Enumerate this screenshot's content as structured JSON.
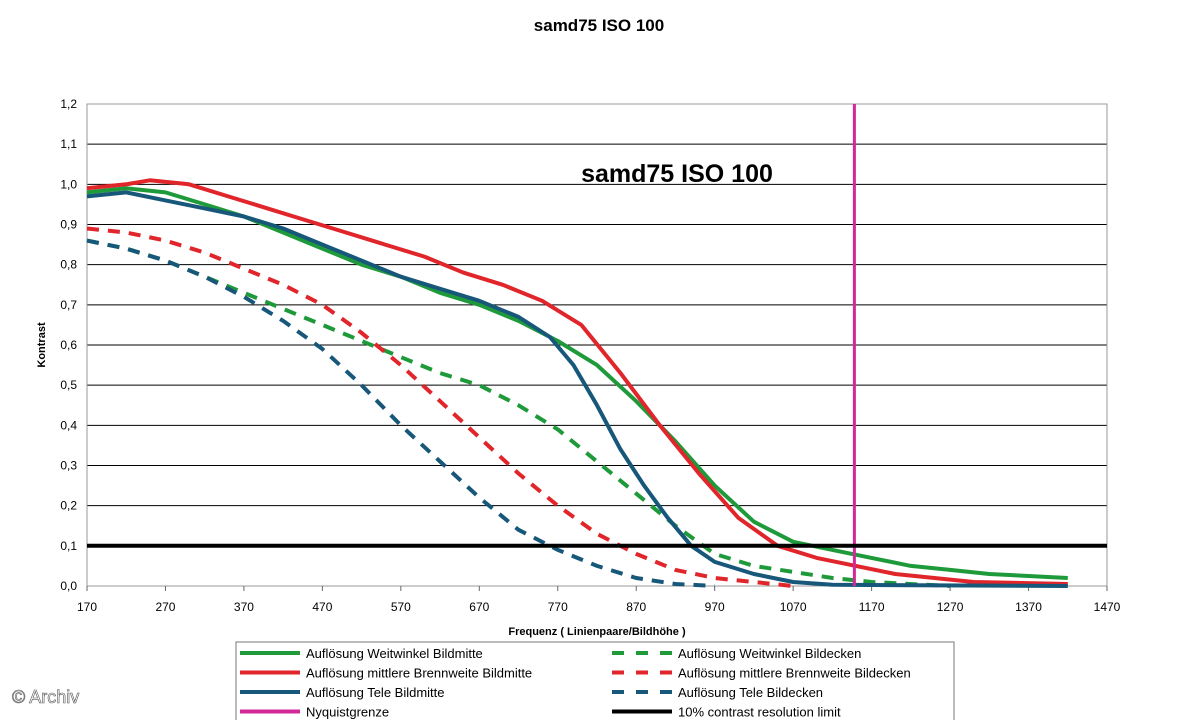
{
  "chart_data": {
    "type": "line",
    "title": "samd75 ISO 100",
    "inner_title": "samd75 ISO 100",
    "xlabel": "Frequenz ( Linienpaare/Bildhöhe )",
    "ylabel": "Kontrast",
    "xlim": [
      170,
      1470
    ],
    "ylim": [
      0,
      1.2
    ],
    "x_ticks": [
      "170",
      "270",
      "370",
      "470",
      "570",
      "670",
      "770",
      "870",
      "970",
      "1070",
      "1170",
      "1270",
      "1370",
      "1470"
    ],
    "y_ticks": [
      "0,0",
      "0,1",
      "0,2",
      "0,3",
      "0,4",
      "0,5",
      "0,6",
      "0,7",
      "0,8",
      "0,9",
      "1,0",
      "1,1",
      "1,2"
    ],
    "grid": "horizontal",
    "legend_position": "bottom",
    "series": [
      {
        "name": "Auflösung Weitwinkel Bildmitte",
        "color": "#1f9a3a",
        "dash": "solid",
        "points": [
          [
            170,
            0.98
          ],
          [
            220,
            0.99
          ],
          [
            270,
            0.98
          ],
          [
            320,
            0.95
          ],
          [
            370,
            0.92
          ],
          [
            420,
            0.88
          ],
          [
            470,
            0.84
          ],
          [
            520,
            0.8
          ],
          [
            570,
            0.77
          ],
          [
            620,
            0.73
          ],
          [
            670,
            0.7
          ],
          [
            720,
            0.66
          ],
          [
            770,
            0.61
          ],
          [
            820,
            0.55
          ],
          [
            870,
            0.46
          ],
          [
            920,
            0.36
          ],
          [
            970,
            0.25
          ],
          [
            1020,
            0.16
          ],
          [
            1070,
            0.11
          ],
          [
            1120,
            0.09
          ],
          [
            1170,
            0.07
          ],
          [
            1220,
            0.05
          ],
          [
            1270,
            0.04
          ],
          [
            1320,
            0.03
          ],
          [
            1370,
            0.025
          ],
          [
            1420,
            0.02
          ]
        ]
      },
      {
        "name": "Auflösung mittlere Brennweite Bildmitte",
        "color": "#e0252b",
        "dash": "solid",
        "points": [
          [
            170,
            0.99
          ],
          [
            220,
            1.0
          ],
          [
            250,
            1.01
          ],
          [
            300,
            1.0
          ],
          [
            350,
            0.97
          ],
          [
            400,
            0.94
          ],
          [
            450,
            0.91
          ],
          [
            500,
            0.88
          ],
          [
            550,
            0.85
          ],
          [
            600,
            0.82
          ],
          [
            650,
            0.78
          ],
          [
            700,
            0.75
          ],
          [
            750,
            0.71
          ],
          [
            800,
            0.65
          ],
          [
            850,
            0.53
          ],
          [
            900,
            0.4
          ],
          [
            950,
            0.28
          ],
          [
            1000,
            0.17
          ],
          [
            1050,
            0.1
          ],
          [
            1100,
            0.07
          ],
          [
            1150,
            0.05
          ],
          [
            1200,
            0.03
          ],
          [
            1250,
            0.02
          ],
          [
            1300,
            0.01
          ],
          [
            1420,
            0.005
          ]
        ]
      },
      {
        "name": "Auflösung Tele Bildmitte",
        "color": "#17577a",
        "dash": "solid",
        "points": [
          [
            170,
            0.97
          ],
          [
            220,
            0.98
          ],
          [
            270,
            0.96
          ],
          [
            320,
            0.94
          ],
          [
            370,
            0.92
          ],
          [
            420,
            0.89
          ],
          [
            470,
            0.85
          ],
          [
            520,
            0.81
          ],
          [
            570,
            0.77
          ],
          [
            620,
            0.74
          ],
          [
            670,
            0.71
          ],
          [
            720,
            0.67
          ],
          [
            760,
            0.62
          ],
          [
            790,
            0.55
          ],
          [
            820,
            0.45
          ],
          [
            850,
            0.34
          ],
          [
            880,
            0.25
          ],
          [
            910,
            0.17
          ],
          [
            940,
            0.1
          ],
          [
            970,
            0.06
          ],
          [
            1020,
            0.03
          ],
          [
            1070,
            0.01
          ],
          [
            1120,
            0.003
          ],
          [
            1420,
            0.0
          ]
        ]
      },
      {
        "name": "Nyquistgrenze",
        "color": "#d3289a",
        "dash": "solid",
        "points": [
          [
            1148,
            0
          ],
          [
            1148,
            1.2
          ]
        ]
      },
      {
        "name": "Auflösung Weitwinkel Bildecken",
        "color": "#1f9a3a",
        "dash": "dashed",
        "points": [
          [
            170,
            0.86
          ],
          [
            220,
            0.84
          ],
          [
            270,
            0.81
          ],
          [
            320,
            0.77
          ],
          [
            370,
            0.73
          ],
          [
            420,
            0.69
          ],
          [
            470,
            0.65
          ],
          [
            520,
            0.61
          ],
          [
            570,
            0.57
          ],
          [
            620,
            0.53
          ],
          [
            670,
            0.5
          ],
          [
            720,
            0.45
          ],
          [
            770,
            0.39
          ],
          [
            820,
            0.31
          ],
          [
            870,
            0.23
          ],
          [
            920,
            0.15
          ],
          [
            970,
            0.08
          ],
          [
            1020,
            0.05
          ],
          [
            1070,
            0.035
          ],
          [
            1120,
            0.02
          ],
          [
            1170,
            0.01
          ],
          [
            1270,
            0.0
          ]
        ]
      },
      {
        "name": "Auflösung mittlere Brennweite Bildecken",
        "color": "#e0252b",
        "dash": "dashed",
        "points": [
          [
            170,
            0.89
          ],
          [
            220,
            0.88
          ],
          [
            270,
            0.86
          ],
          [
            320,
            0.83
          ],
          [
            370,
            0.79
          ],
          [
            420,
            0.75
          ],
          [
            470,
            0.7
          ],
          [
            520,
            0.63
          ],
          [
            570,
            0.55
          ],
          [
            620,
            0.46
          ],
          [
            670,
            0.37
          ],
          [
            720,
            0.28
          ],
          [
            770,
            0.2
          ],
          [
            820,
            0.13
          ],
          [
            870,
            0.08
          ],
          [
            920,
            0.04
          ],
          [
            970,
            0.02
          ],
          [
            1020,
            0.01
          ],
          [
            1070,
            0.0
          ]
        ]
      },
      {
        "name": "Auflösung Tele Bildecken",
        "color": "#17577a",
        "dash": "dashed",
        "points": [
          [
            170,
            0.86
          ],
          [
            220,
            0.84
          ],
          [
            270,
            0.81
          ],
          [
            320,
            0.77
          ],
          [
            370,
            0.72
          ],
          [
            420,
            0.66
          ],
          [
            470,
            0.59
          ],
          [
            520,
            0.5
          ],
          [
            570,
            0.4
          ],
          [
            620,
            0.31
          ],
          [
            670,
            0.22
          ],
          [
            720,
            0.14
          ],
          [
            770,
            0.09
          ],
          [
            820,
            0.05
          ],
          [
            870,
            0.02
          ],
          [
            920,
            0.005
          ],
          [
            970,
            0.0
          ]
        ]
      },
      {
        "name": "10% contrast resolution limit",
        "color": "#000000",
        "dash": "solid",
        "points": [
          [
            170,
            0.1
          ],
          [
            1470,
            0.1
          ]
        ]
      }
    ],
    "legend": [
      {
        "label": "Auflösung Weitwinkel Bildmitte",
        "color": "#1f9a3a",
        "dash": "solid"
      },
      {
        "label": "Auflösung Weitwinkel Bildecken",
        "color": "#1f9a3a",
        "dash": "dashed"
      },
      {
        "label": "Auflösung mittlere Brennweite Bildmitte",
        "color": "#e0252b",
        "dash": "solid"
      },
      {
        "label": "Auflösung mittlere Brennweite Bildecken",
        "color": "#e0252b",
        "dash": "dashed"
      },
      {
        "label": "Auflösung Tele Bildmitte",
        "color": "#17577a",
        "dash": "solid"
      },
      {
        "label": "Auflösung Tele Bildecken",
        "color": "#17577a",
        "dash": "dashed"
      },
      {
        "label": "Nyquistgrenze",
        "color": "#d3289a",
        "dash": "solid"
      },
      {
        "label": "10% contrast resolution limit",
        "color": "#000000",
        "dash": "solid"
      }
    ]
  },
  "watermark": "© Archiv"
}
